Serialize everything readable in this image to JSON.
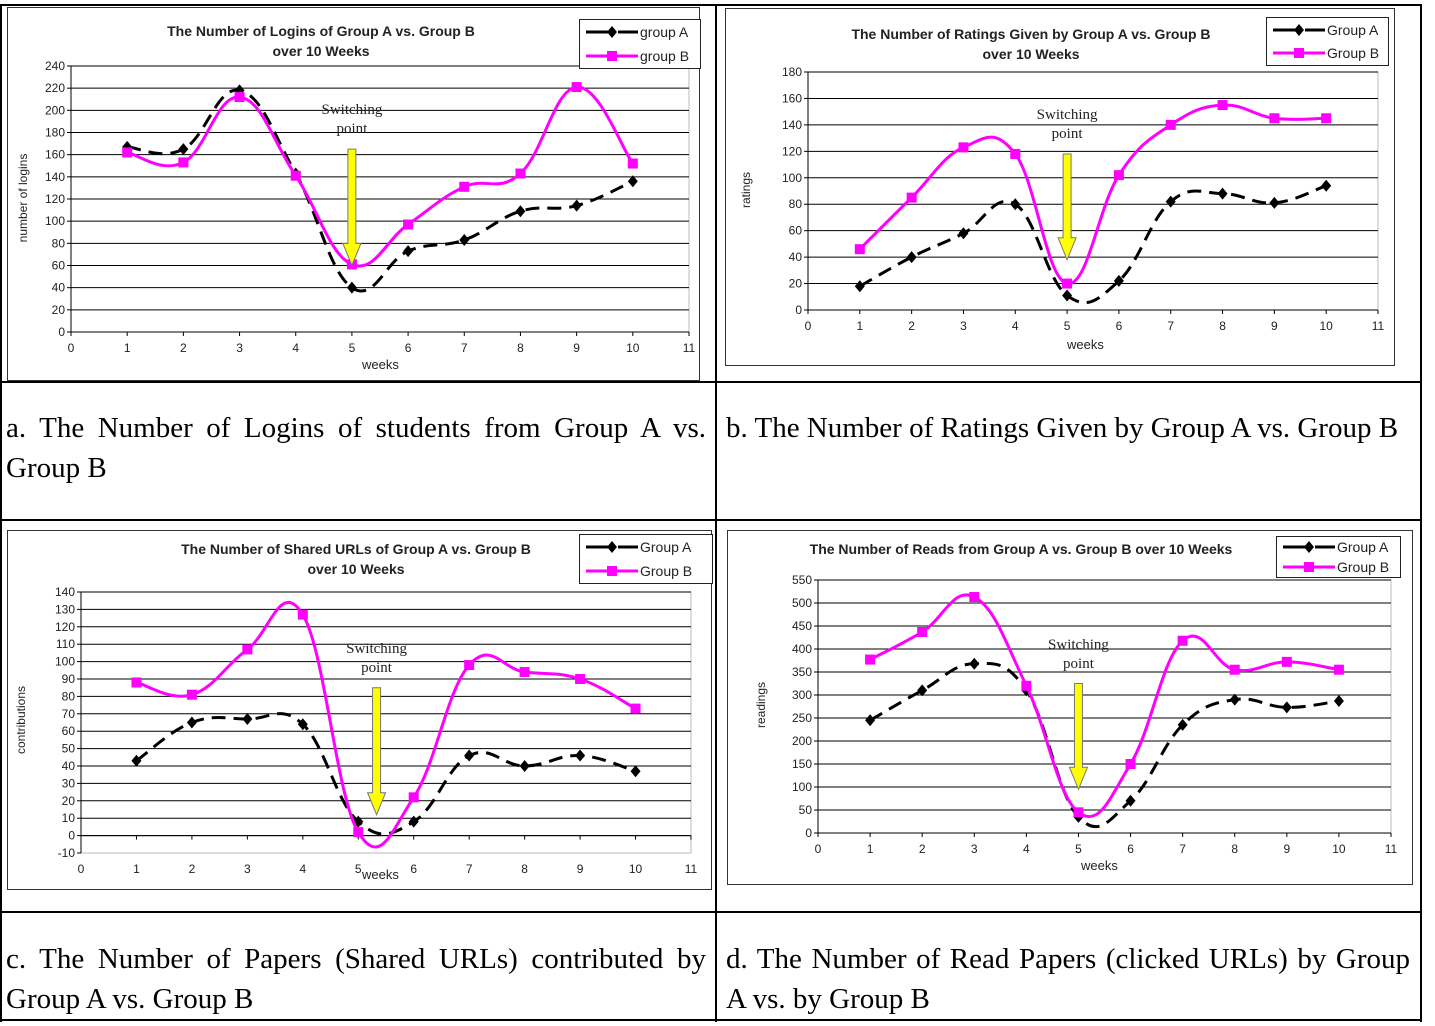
{
  "captions": [
    "a. The Number of Logins of students from Group A vs. Group B",
    "b. The Number of Ratings Given by Group A vs. Group B",
    "c. The Number of Papers (Shared URLs) contributed by Group A vs. Group B",
    "d. The Number of Read Papers (clicked URLs) by Group A vs. by Group B"
  ],
  "colors": {
    "group_a": "#000000",
    "group_b": "#ff00ff",
    "arrow": "#ffff00",
    "grid": "#000000"
  },
  "chart_data": [
    {
      "type": "line",
      "title": [
        "The Number of Logins of Group A vs. Group B",
        "over 10 Weeks"
      ],
      "xlabel": "weeks",
      "ylabel": "number of logins",
      "xlim": [
        0,
        11
      ],
      "ylim": [
        0,
        240
      ],
      "ystep": 20,
      "xticks": [
        "0",
        "1",
        "2",
        "3",
        "4",
        "5",
        "6",
        "7",
        "8",
        "9",
        "10",
        "11"
      ],
      "yticks": [
        "0",
        "20",
        "40",
        "60",
        "80",
        "100",
        "120",
        "140",
        "160",
        "180",
        "200",
        "220",
        "240"
      ],
      "x": [
        1,
        2,
        3,
        4,
        5,
        6,
        7,
        8,
        9,
        10
      ],
      "series": [
        {
          "name": "group A",
          "values": [
            167,
            165,
            218,
            143,
            40,
            73,
            83,
            109,
            114,
            136
          ]
        },
        {
          "name": "group B",
          "values": [
            162,
            153,
            212,
            141,
            61,
            97,
            131,
            143,
            221,
            152
          ]
        }
      ],
      "legend": "top-right",
      "grid": true,
      "annotation": {
        "text": [
          "Switching",
          "point"
        ],
        "x": 5,
        "from": 165,
        "to": 60
      }
    },
    {
      "type": "line",
      "title": [
        "The Number of Ratings Given by Group A vs. Group B",
        "over 10 Weeks"
      ],
      "xlabel": "weeks",
      "ylabel": "ratings",
      "xlim": [
        0,
        11
      ],
      "ylim": [
        0,
        180
      ],
      "ystep": 20,
      "xticks": [
        "0",
        "1",
        "2",
        "3",
        "4",
        "5",
        "6",
        "7",
        "8",
        "9",
        "10",
        "11"
      ],
      "yticks": [
        "0",
        "20",
        "40",
        "60",
        "80",
        "100",
        "120",
        "140",
        "160",
        "180"
      ],
      "x": [
        1,
        2,
        3,
        4,
        5,
        6,
        7,
        8,
        9,
        10
      ],
      "series": [
        {
          "name": "Group A",
          "values": [
            18,
            40,
            58,
            80,
            11,
            22,
            82,
            88,
            81,
            94
          ]
        },
        {
          "name": "Group B",
          "values": [
            46,
            85,
            123,
            118,
            20,
            102,
            140,
            155,
            145,
            145
          ]
        }
      ],
      "legend": "top-right",
      "grid": true,
      "annotation": {
        "text": [
          "Switching",
          "point"
        ],
        "x": 5,
        "from": 118,
        "to": 38
      }
    },
    {
      "type": "line",
      "title": [
        "The Number of Shared URLs of Group A vs. Group B",
        "over 10 Weeks"
      ],
      "xlabel": "weeks",
      "ylabel": "contributions",
      "xlim": [
        0,
        11
      ],
      "ylim": [
        -10,
        140
      ],
      "ystep": 10,
      "xticks": [
        "0",
        "1",
        "2",
        "3",
        "4",
        "5",
        "6",
        "7",
        "8",
        "9",
        "10",
        "11"
      ],
      "yticks": [
        "-10",
        "0",
        "10",
        "20",
        "30",
        "40",
        "50",
        "60",
        "70",
        "80",
        "90",
        "100",
        "110",
        "120",
        "130",
        "140"
      ],
      "x": [
        1,
        2,
        3,
        4,
        5,
        6,
        7,
        8,
        9,
        10
      ],
      "series": [
        {
          "name": "Group A",
          "values": [
            43,
            65,
            67,
            64,
            8,
            8,
            46,
            40,
            46,
            37
          ]
        },
        {
          "name": "Group B",
          "values": [
            88,
            81,
            107,
            127,
            2,
            22,
            98,
            94,
            90,
            73
          ]
        }
      ],
      "legend": "top-right",
      "grid": true,
      "annotation": {
        "text": [
          "Switching",
          "point"
        ],
        "x": 5.33,
        "from": 85,
        "to": 12
      }
    },
    {
      "type": "line",
      "title": [
        "The Number of Reads from Group A vs. Group B over 10 Weeks"
      ],
      "xlabel": "weeks",
      "ylabel": "readings",
      "xlim": [
        0,
        11
      ],
      "ylim": [
        0,
        550
      ],
      "ystep": 50,
      "xticks": [
        "0",
        "1",
        "2",
        "3",
        "4",
        "5",
        "6",
        "7",
        "8",
        "9",
        "10",
        "11"
      ],
      "yticks": [
        "0",
        "50",
        "100",
        "150",
        "200",
        "250",
        "300",
        "350",
        "400",
        "450",
        "500",
        "550"
      ],
      "x": [
        1,
        2,
        3,
        4,
        5,
        6,
        7,
        8,
        9,
        10
      ],
      "series": [
        {
          "name": "Group A",
          "values": [
            245,
            310,
            368,
            310,
            35,
            70,
            235,
            290,
            273,
            287
          ]
        },
        {
          "name": "Group B",
          "values": [
            377,
            437,
            513,
            320,
            45,
            150,
            418,
            355,
            372,
            355
          ]
        }
      ],
      "legend": "top-right",
      "grid": true,
      "annotation": {
        "text": [
          "Switching",
          "point"
        ],
        "x": 5,
        "from": 325,
        "to": 95
      }
    }
  ]
}
